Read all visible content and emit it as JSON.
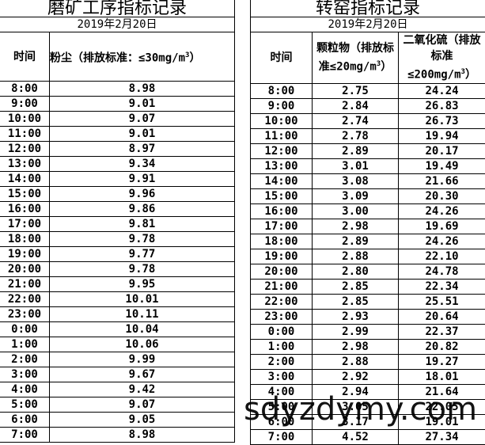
{
  "left_table": {
    "title": "磨矿工序指标记录",
    "date": "2019年2月20日",
    "headers": {
      "time": "时间",
      "dust": "粉尘（排放标准：≤30mg/m",
      "dust_sup": "3",
      "dust_end": "）"
    },
    "rows": [
      [
        "8:00",
        "8.98"
      ],
      [
        "9:00",
        "9.01"
      ],
      [
        "10:00",
        "9.07"
      ],
      [
        "11:00",
        "9.01"
      ],
      [
        "12:00",
        "8.97"
      ],
      [
        "13:00",
        "9.34"
      ],
      [
        "14:00",
        "9.91"
      ],
      [
        "15:00",
        "9.96"
      ],
      [
        "16:00",
        "9.86"
      ],
      [
        "17:00",
        "9.81"
      ],
      [
        "18:00",
        "9.78"
      ],
      [
        "19:00",
        "9.77"
      ],
      [
        "20:00",
        "9.78"
      ],
      [
        "21:00",
        "9.95"
      ],
      [
        "22:00",
        "10.01"
      ],
      [
        "23:00",
        "10.11"
      ],
      [
        "0:00",
        "10.04"
      ],
      [
        "1:00",
        "10.06"
      ],
      [
        "2:00",
        "9.99"
      ],
      [
        "3:00",
        "9.67"
      ],
      [
        "4:00",
        "9.42"
      ],
      [
        "5:00",
        "9.07"
      ],
      [
        "6:00",
        "9.05"
      ],
      [
        "7:00",
        "8.98"
      ]
    ]
  },
  "right_table": {
    "title": "转窑指标记录",
    "date": "2019年2月20日",
    "headers": {
      "time": "时间",
      "pm": "颗粒物（排放标准≤20mg/m",
      "pm_sup": "3",
      "pm_end": "）",
      "so2": "二氧化硫（排放标准≤200mg/m",
      "so2_sup": "3",
      "so2_end": "）"
    },
    "rows": [
      [
        "8:00",
        "2.75",
        "24.24"
      ],
      [
        "9:00",
        "2.84",
        "26.83"
      ],
      [
        "10:00",
        "2.74",
        "26.73"
      ],
      [
        "11:00",
        "2.78",
        "19.94"
      ],
      [
        "12:00",
        "2.89",
        "20.17"
      ],
      [
        "13:00",
        "3.01",
        "19.49"
      ],
      [
        "14:00",
        "3.08",
        "21.66"
      ],
      [
        "15:00",
        "3.09",
        "20.30"
      ],
      [
        "16:00",
        "3.00",
        "24.26"
      ],
      [
        "17:00",
        "2.98",
        "19.69"
      ],
      [
        "18:00",
        "2.89",
        "24.26"
      ],
      [
        "19:00",
        "2.88",
        "22.10"
      ],
      [
        "20:00",
        "2.80",
        "24.78"
      ],
      [
        "21:00",
        "2.85",
        "22.34"
      ],
      [
        "22:00",
        "2.85",
        "25.51"
      ],
      [
        "23:00",
        "2.93",
        "20.64"
      ],
      [
        "0:00",
        "2.99",
        "22.37"
      ],
      [
        "1:00",
        "2.98",
        "20.82"
      ],
      [
        "2:00",
        "2.88",
        "19.27"
      ],
      [
        "3:00",
        "2.92",
        "18.01"
      ],
      [
        "4:00",
        "2.94",
        "21.64"
      ],
      [
        "5:00",
        "3.05",
        "22.05"
      ],
      [
        "6:00",
        "3.17",
        "19.01"
      ],
      [
        "7:00",
        "4.52",
        "27.34"
      ]
    ]
  },
  "watermark": "sdyzdymy.com"
}
